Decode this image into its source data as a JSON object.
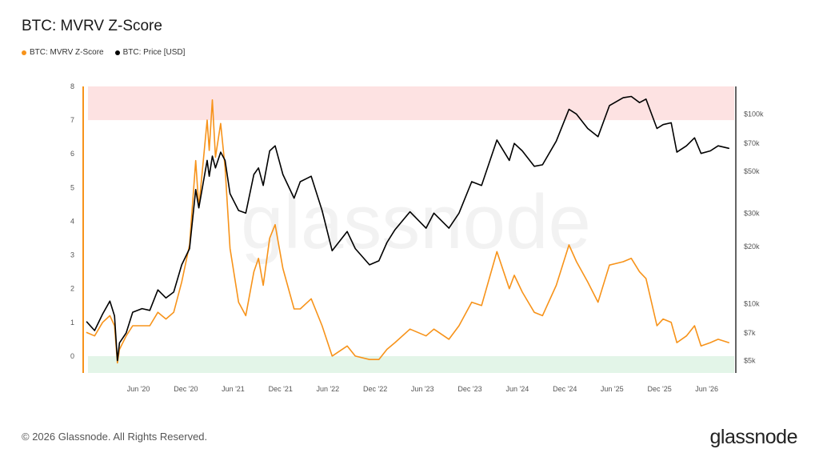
{
  "chart_data": {
    "type": "line",
    "title": "BTC: MVRV Z-Score",
    "legend": [
      {
        "name": "BTC: MVRV Z-Score",
        "color": "#f7931a"
      },
      {
        "name": "BTC: Price [USD]",
        "color": "#000000"
      }
    ],
    "watermark": "glassnode",
    "x_range": [
      "2019-11-01",
      "2026-09-15"
    ],
    "x_ticks": [
      {
        "date": "2020-06-01",
        "label": "Jun '20"
      },
      {
        "date": "2020-12-01",
        "label": "Dec '20"
      },
      {
        "date": "2021-06-01",
        "label": "Jun '21"
      },
      {
        "date": "2021-12-01",
        "label": "Dec '21"
      },
      {
        "date": "2022-06-01",
        "label": "Jun '22"
      },
      {
        "date": "2022-12-01",
        "label": "Dec '22"
      },
      {
        "date": "2023-06-01",
        "label": "Jun '23"
      },
      {
        "date": "2023-12-01",
        "label": "Dec '23"
      },
      {
        "date": "2024-06-01",
        "label": "Jun '24"
      },
      {
        "date": "2024-12-01",
        "label": "Dec '24"
      },
      {
        "date": "2025-06-01",
        "label": "Jun '25"
      },
      {
        "date": "2025-12-01",
        "label": "Dec '25"
      },
      {
        "date": "2026-06-01",
        "label": "Jun '26"
      }
    ],
    "y_left": {
      "range": [
        -0.5,
        8
      ],
      "ticks": [
        0,
        1,
        2,
        3,
        4,
        5,
        6,
        7,
        8
      ]
    },
    "y_right": {
      "scale": "log",
      "range": [
        4300,
        140000
      ],
      "ticks": [
        {
          "value": 5000,
          "label": "$5k"
        },
        {
          "value": 7000,
          "label": "$7k"
        },
        {
          "value": 10000,
          "label": "$10k"
        },
        {
          "value": 20000,
          "label": "$20k"
        },
        {
          "value": 30000,
          "label": "$30k"
        },
        {
          "value": 50000,
          "label": "$50k"
        },
        {
          "value": 70000,
          "label": "$70k"
        },
        {
          "value": 100000,
          "label": "$100k"
        }
      ]
    },
    "bands": [
      {
        "from": 7,
        "to": 8,
        "color": "#fde2e2"
      },
      {
        "from": -0.5,
        "to": 0,
        "color": "#e3f5e8"
      }
    ],
    "series": [
      {
        "name": "BTC: MVRV Z-Score",
        "axis": "left",
        "color": "#f7931a",
        "points": [
          [
            "2019-11-15",
            0.7
          ],
          [
            "2019-12-15",
            0.6
          ],
          [
            "2020-01-15",
            1.0
          ],
          [
            "2020-02-12",
            1.2
          ],
          [
            "2020-03-01",
            0.9
          ],
          [
            "2020-03-12",
            -0.2
          ],
          [
            "2020-03-20",
            0.2
          ],
          [
            "2020-04-15",
            0.6
          ],
          [
            "2020-05-10",
            0.9
          ],
          [
            "2020-06-15",
            0.9
          ],
          [
            "2020-07-15",
            0.9
          ],
          [
            "2020-08-15",
            1.3
          ],
          [
            "2020-09-15",
            1.1
          ],
          [
            "2020-10-15",
            1.3
          ],
          [
            "2020-11-15",
            2.2
          ],
          [
            "2020-12-15",
            3.3
          ],
          [
            "2021-01-08",
            5.8
          ],
          [
            "2021-01-20",
            4.4
          ],
          [
            "2021-02-21",
            7.0
          ],
          [
            "2021-03-01",
            6.1
          ],
          [
            "2021-03-13",
            7.6
          ],
          [
            "2021-03-25",
            5.9
          ],
          [
            "2021-04-14",
            6.9
          ],
          [
            "2021-05-01",
            5.6
          ],
          [
            "2021-05-20",
            3.2
          ],
          [
            "2021-06-22",
            1.6
          ],
          [
            "2021-07-20",
            1.2
          ],
          [
            "2021-08-20",
            2.5
          ],
          [
            "2021-09-07",
            2.9
          ],
          [
            "2021-09-25",
            2.1
          ],
          [
            "2021-10-20",
            3.5
          ],
          [
            "2021-11-10",
            3.9
          ],
          [
            "2021-12-10",
            2.6
          ],
          [
            "2022-01-22",
            1.4
          ],
          [
            "2022-02-15",
            1.4
          ],
          [
            "2022-03-29",
            1.7
          ],
          [
            "2022-05-10",
            0.9
          ],
          [
            "2022-06-18",
            0.0
          ],
          [
            "2022-08-15",
            0.3
          ],
          [
            "2022-09-15",
            0.0
          ],
          [
            "2022-11-09",
            -0.1
          ],
          [
            "2022-12-15",
            -0.1
          ],
          [
            "2023-01-15",
            0.2
          ],
          [
            "2023-02-15",
            0.4
          ],
          [
            "2023-04-14",
            0.8
          ],
          [
            "2023-06-15",
            0.6
          ],
          [
            "2023-07-15",
            0.8
          ],
          [
            "2023-09-11",
            0.5
          ],
          [
            "2023-10-20",
            0.9
          ],
          [
            "2023-12-08",
            1.6
          ],
          [
            "2024-01-15",
            1.5
          ],
          [
            "2024-03-14",
            3.1
          ],
          [
            "2024-05-01",
            2.0
          ],
          [
            "2024-05-20",
            2.4
          ],
          [
            "2024-06-20",
            1.9
          ],
          [
            "2024-08-05",
            1.3
          ],
          [
            "2024-09-06",
            1.2
          ],
          [
            "2024-10-29",
            2.1
          ],
          [
            "2024-12-17",
            3.3
          ],
          [
            "2025-01-15",
            2.8
          ],
          [
            "2025-02-27",
            2.2
          ],
          [
            "2025-04-08",
            1.6
          ],
          [
            "2025-05-22",
            2.7
          ],
          [
            "2025-07-14",
            2.8
          ],
          [
            "2025-08-14",
            2.9
          ],
          [
            "2025-09-15",
            2.5
          ],
          [
            "2025-10-10",
            2.3
          ],
          [
            "2025-11-21",
            0.9
          ],
          [
            "2025-12-15",
            1.1
          ],
          [
            "2026-01-15",
            1.0
          ],
          [
            "2026-02-06",
            0.4
          ],
          [
            "2026-03-15",
            0.6
          ],
          [
            "2026-04-15",
            0.9
          ],
          [
            "2026-05-10",
            0.3
          ],
          [
            "2026-06-15",
            0.4
          ],
          [
            "2026-07-15",
            0.5
          ],
          [
            "2026-08-25",
            0.4
          ]
        ]
      },
      {
        "name": "BTC: Price [USD]",
        "axis": "right",
        "color": "#000000",
        "points": [
          [
            "2019-11-15",
            8000
          ],
          [
            "2019-12-15",
            7200
          ],
          [
            "2020-01-15",
            8800
          ],
          [
            "2020-02-12",
            10300
          ],
          [
            "2020-03-01",
            8600
          ],
          [
            "2020-03-12",
            5000
          ],
          [
            "2020-03-20",
            6200
          ],
          [
            "2020-04-15",
            7000
          ],
          [
            "2020-05-10",
            9000
          ],
          [
            "2020-06-15",
            9400
          ],
          [
            "2020-07-15",
            9200
          ],
          [
            "2020-08-15",
            11800
          ],
          [
            "2020-09-15",
            10700
          ],
          [
            "2020-10-15",
            11500
          ],
          [
            "2020-11-15",
            16000
          ],
          [
            "2020-12-15",
            19500
          ],
          [
            "2021-01-08",
            40000
          ],
          [
            "2021-01-20",
            32000
          ],
          [
            "2021-02-21",
            57000
          ],
          [
            "2021-03-01",
            47000
          ],
          [
            "2021-03-13",
            60000
          ],
          [
            "2021-03-25",
            52000
          ],
          [
            "2021-04-14",
            63000
          ],
          [
            "2021-05-01",
            57000
          ],
          [
            "2021-05-20",
            38000
          ],
          [
            "2021-06-22",
            31000
          ],
          [
            "2021-07-20",
            30000
          ],
          [
            "2021-08-20",
            48000
          ],
          [
            "2021-09-07",
            52000
          ],
          [
            "2021-09-25",
            42000
          ],
          [
            "2021-10-20",
            64000
          ],
          [
            "2021-11-10",
            68000
          ],
          [
            "2021-12-10",
            48000
          ],
          [
            "2022-01-22",
            36000
          ],
          [
            "2022-02-15",
            44000
          ],
          [
            "2022-03-29",
            47000
          ],
          [
            "2022-05-10",
            31000
          ],
          [
            "2022-06-18",
            19000
          ],
          [
            "2022-08-15",
            24000
          ],
          [
            "2022-09-15",
            19500
          ],
          [
            "2022-11-09",
            16000
          ],
          [
            "2022-12-15",
            16800
          ],
          [
            "2023-01-15",
            21000
          ],
          [
            "2023-02-15",
            24500
          ],
          [
            "2023-04-14",
            30500
          ],
          [
            "2023-06-15",
            25000
          ],
          [
            "2023-07-15",
            30000
          ],
          [
            "2023-09-11",
            25000
          ],
          [
            "2023-10-20",
            30000
          ],
          [
            "2023-12-08",
            44000
          ],
          [
            "2024-01-15",
            42000
          ],
          [
            "2024-03-14",
            73000
          ],
          [
            "2024-05-01",
            57000
          ],
          [
            "2024-05-20",
            70000
          ],
          [
            "2024-06-20",
            64000
          ],
          [
            "2024-08-05",
            53000
          ],
          [
            "2024-09-06",
            54000
          ],
          [
            "2024-10-29",
            72000
          ],
          [
            "2024-12-17",
            106000
          ],
          [
            "2025-01-15",
            100000
          ],
          [
            "2025-02-27",
            84000
          ],
          [
            "2025-04-08",
            76000
          ],
          [
            "2025-05-22",
            111000
          ],
          [
            "2025-07-14",
            122000
          ],
          [
            "2025-08-14",
            124000
          ],
          [
            "2025-09-15",
            115000
          ],
          [
            "2025-10-10",
            120000
          ],
          [
            "2025-11-21",
            84000
          ],
          [
            "2025-12-15",
            88000
          ],
          [
            "2026-01-15",
            90000
          ],
          [
            "2026-02-06",
            63000
          ],
          [
            "2026-03-15",
            68000
          ],
          [
            "2026-04-15",
            75000
          ],
          [
            "2026-05-10",
            62000
          ],
          [
            "2026-06-15",
            64000
          ],
          [
            "2026-07-15",
            68000
          ],
          [
            "2026-08-25",
            66000
          ]
        ]
      }
    ]
  },
  "footer": {
    "copyright": "© 2026 Glassnode. All Rights Reserved.",
    "brand": "glassnode"
  }
}
